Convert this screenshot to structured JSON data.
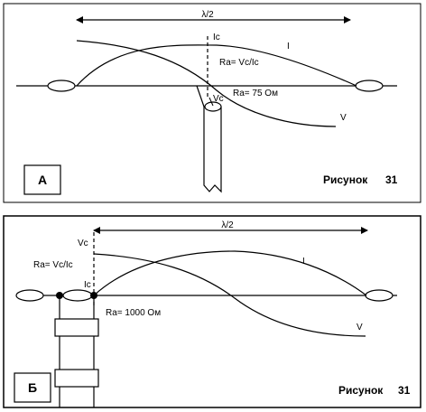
{
  "panel_a": {
    "lambda_label": "λ/2",
    "current_label": "Ic",
    "current_curve_label": "I",
    "voltage_label": "Vc",
    "voltage_curve_label": "V",
    "ra_formula": "Ra= Vc/Ic",
    "ra_value": "Ra= 75 Ом",
    "panel_letter": "А",
    "figure_word": "Рисунок",
    "figure_number": "31"
  },
  "panel_b": {
    "lambda_label": "λ/2",
    "voltage_label": "Vc",
    "current_label": "Ic",
    "current_curve_label": "I",
    "voltage_curve_label": "V",
    "ra_formula": "Ra= Vc/Ic",
    "ra_value": "Ra= 1000 Ом",
    "panel_letter": "Б",
    "figure_word": "Рисунок",
    "figure_number": "31"
  }
}
